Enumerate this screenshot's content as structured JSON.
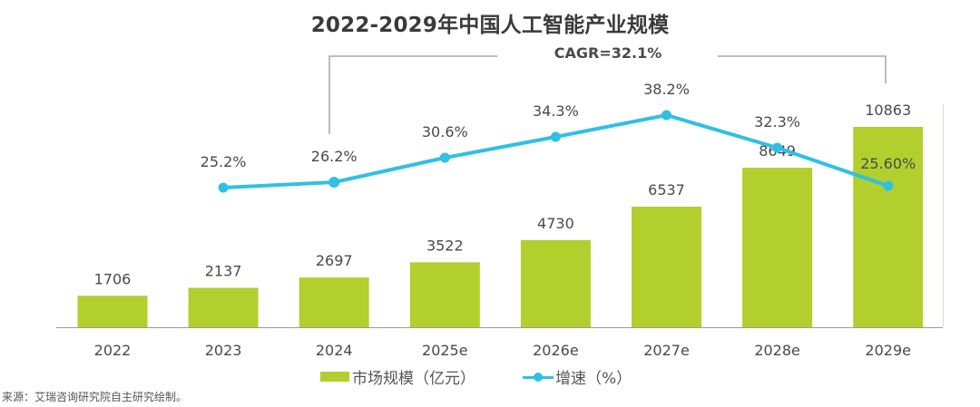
{
  "title": "2022-2029年中国人工智能产业规模",
  "cagr_label": "CAGR=32.1%",
  "source": "来源：艾瑞咨询研究院自主研究绘制。",
  "legend": {
    "bar_label": "市场规模（亿元）",
    "line_label": "增速（%）"
  },
  "colors": {
    "bar": "#B2CF2E",
    "line": "#2FC0E4",
    "axis": "#9a9a9a",
    "bracket": "#a6a6a6",
    "text": "#4a4a4a"
  },
  "chart_data": {
    "type": "bar",
    "title": "2022-2029年中国人工智能产业规模",
    "categories": [
      "2022",
      "2023",
      "2024",
      "2025e",
      "2026e",
      "2027e",
      "2028e",
      "2029e"
    ],
    "series": [
      {
        "name": "市场规模（亿元）",
        "type": "bar",
        "values": [
          1706,
          2137,
          2697,
          3522,
          4730,
          6537,
          8649,
          10863
        ],
        "labels": [
          "1706",
          "2137",
          "2697",
          "3522",
          "4730",
          "6537",
          "8649",
          "10863"
        ]
      },
      {
        "name": "增速（%）",
        "type": "line",
        "values": [
          null,
          25.2,
          26.2,
          30.6,
          34.3,
          38.2,
          32.3,
          25.6
        ],
        "labels": [
          "",
          "25.2%",
          "26.2%",
          "30.6%",
          "34.3%",
          "38.2%",
          "32.3%",
          "25.60%"
        ]
      }
    ],
    "annotations": [
      {
        "text": "CAGR=32.1%",
        "span": [
          "2024",
          "2029e"
        ]
      }
    ],
    "xlabel": "",
    "ylabel": "",
    "legend_position": "bottom",
    "grid": false
  }
}
